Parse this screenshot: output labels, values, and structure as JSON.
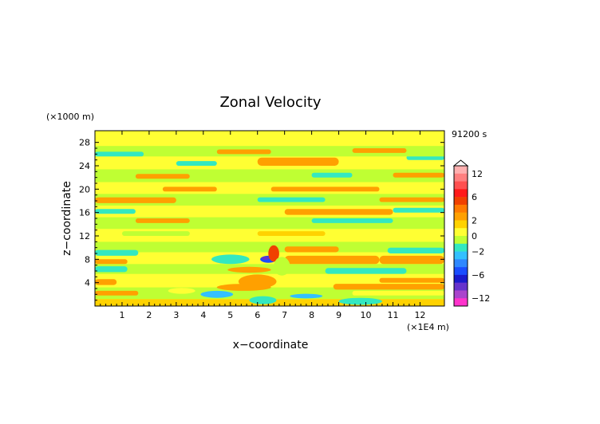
{
  "chart_data": {
    "type": "heatmap",
    "title": "Zonal Velocity",
    "xlabel": "x−coordinate",
    "ylabel": "z−coordinate",
    "x_unit": "(×1E4 m)",
    "y_unit": "(×1000 m)",
    "time_label": "91200 s",
    "xlim": [
      0,
      12.9
    ],
    "ylim": [
      0,
      30
    ],
    "x_ticks": [
      "1",
      "2",
      "3",
      "4",
      "5",
      "6",
      "7",
      "8",
      "9",
      "10",
      "11",
      "12"
    ],
    "y_ticks": [
      "4",
      "8",
      "12",
      "16",
      "20",
      "24",
      "28"
    ],
    "colorbar": {
      "labels": [
        "12",
        "6",
        "2",
        "0",
        "−2",
        "−6",
        "−12"
      ],
      "levels": [
        {
          "lo": 12,
          "hi": 14,
          "color": "#ffb0b0"
        },
        {
          "lo": 10,
          "hi": 12,
          "color": "#ff8080"
        },
        {
          "lo": 8,
          "hi": 10,
          "color": "#ff5050"
        },
        {
          "lo": 6,
          "hi": 8,
          "color": "#ff1a1a"
        },
        {
          "lo": 4,
          "hi": 6,
          "color": "#f04000"
        },
        {
          "lo": 3,
          "hi": 4,
          "color": "#ff7a00"
        },
        {
          "lo": 2,
          "hi": 3,
          "color": "#ffa000"
        },
        {
          "lo": 1,
          "hi": 2,
          "color": "#ffd200"
        },
        {
          "lo": 0,
          "hi": 1,
          "color": "#ffff33"
        },
        {
          "lo": -1,
          "hi": 0,
          "color": "#bfff33"
        },
        {
          "lo": -2,
          "hi": -1,
          "color": "#33e8c0"
        },
        {
          "lo": -3,
          "hi": -2,
          "color": "#33c0ff"
        },
        {
          "lo": -4,
          "hi": -3,
          "color": "#2f88ff"
        },
        {
          "lo": -6,
          "hi": -4,
          "color": "#1a4dff"
        },
        {
          "lo": -8,
          "hi": -6,
          "color": "#1a1acc"
        },
        {
          "lo": -10,
          "hi": -8,
          "color": "#6633cc"
        },
        {
          "lo": -12,
          "hi": -10,
          "color": "#aa44cc"
        },
        {
          "lo": -14,
          "hi": -12,
          "color": "#ff33cc"
        }
      ]
    },
    "bands": [
      {
        "x": [
          0,
          12.9
        ],
        "z": [
          0.0,
          1.2
        ],
        "v": 1.3
      },
      {
        "x": [
          0,
          12.9
        ],
        "z": [
          1.2,
          3.2
        ],
        "v": -0.5
      },
      {
        "x": [
          0.0,
          1.6
        ],
        "z": [
          1.8,
          2.6
        ],
        "v": 2.5
      },
      {
        "x": [
          9.5,
          12.9
        ],
        "z": [
          1.8,
          2.6
        ],
        "v": 0.5
      },
      {
        "x": [
          0,
          12.9
        ],
        "z": [
          3.2,
          5.5
        ],
        "v": 0.5
      },
      {
        "x": [
          0.0,
          0.8
        ],
        "z": [
          3.6,
          4.6
        ],
        "v": 2.4
      },
      {
        "x": [
          8.8,
          12.9
        ],
        "z": [
          2.8,
          3.8
        ],
        "v": 2.6
      },
      {
        "x": [
          10.5,
          12.9
        ],
        "z": [
          4.0,
          4.8
        ],
        "v": 2.2
      },
      {
        "x": [
          0,
          12.9
        ],
        "z": [
          5.5,
          7.2
        ],
        "v": -0.5
      },
      {
        "x": [
          0.0,
          1.2
        ],
        "z": [
          5.8,
          6.8
        ],
        "v": -1.8
      },
      {
        "x": [
          8.5,
          11.5
        ],
        "z": [
          5.5,
          6.5
        ],
        "v": -1.6
      },
      {
        "x": [
          0,
          12.9
        ],
        "z": [
          7.2,
          9.2
        ],
        "v": 0.6
      },
      {
        "x": [
          7.0,
          10.5
        ],
        "z": [
          7.2,
          8.6
        ],
        "v": 2.5
      },
      {
        "x": [
          10.5,
          12.9
        ],
        "z": [
          7.2,
          8.6
        ],
        "v": 2.3
      },
      {
        "x": [
          0,
          12.9
        ],
        "z": [
          9.2,
          11.0
        ],
        "v": -0.6
      },
      {
        "x": [
          0.0,
          1.6
        ],
        "z": [
          8.6,
          9.6
        ],
        "v": -1.8
      },
      {
        "x": [
          0.0,
          1.2
        ],
        "z": [
          7.2,
          8.0
        ],
        "v": 2.0
      },
      {
        "x": [
          10.8,
          12.9
        ],
        "z": [
          9.0,
          10.0
        ],
        "v": -1.8
      },
      {
        "x": [
          7.0,
          9.0
        ],
        "z": [
          9.2,
          10.2
        ],
        "v": 2.2
      },
      {
        "x": [
          0,
          12.9
        ],
        "z": [
          11.0,
          13.2
        ],
        "v": 0.5
      },
      {
        "x": [
          1.0,
          3.5
        ],
        "z": [
          12.0,
          12.8
        ],
        "v": -0.4
      },
      {
        "x": [
          6.0,
          8.5
        ],
        "z": [
          12.0,
          12.8
        ],
        "v": 1.6
      },
      {
        "x": [
          0,
          12.9
        ],
        "z": [
          13.2,
          15.2
        ],
        "v": -0.5
      },
      {
        "x": [
          1.5,
          3.5
        ],
        "z": [
          14.2,
          15.0
        ],
        "v": 2.3
      },
      {
        "x": [
          8.0,
          11.0
        ],
        "z": [
          14.2,
          15.0
        ],
        "v": -1.5
      },
      {
        "x": [
          0,
          12.9
        ],
        "z": [
          15.2,
          17.2
        ],
        "v": 0.5
      },
      {
        "x": [
          0.0,
          1.5
        ],
        "z": [
          15.8,
          16.6
        ],
        "v": -1.8
      },
      {
        "x": [
          7.0,
          11.0
        ],
        "z": [
          15.6,
          16.6
        ],
        "v": 2.6
      },
      {
        "x": [
          11.0,
          12.9
        ],
        "z": [
          16.0,
          16.8
        ],
        "v": -1.6
      },
      {
        "x": [
          0,
          12.9
        ],
        "z": [
          17.2,
          19.2
        ],
        "v": -0.5
      },
      {
        "x": [
          0.0,
          3.0
        ],
        "z": [
          17.6,
          18.6
        ],
        "v": 2.5
      },
      {
        "x": [
          6.0,
          8.5
        ],
        "z": [
          17.8,
          18.6
        ],
        "v": -1.7
      },
      {
        "x": [
          10.5,
          12.9
        ],
        "z": [
          17.8,
          18.6
        ],
        "v": 2.2
      },
      {
        "x": [
          0,
          12.9
        ],
        "z": [
          19.2,
          21.2
        ],
        "v": 0.5
      },
      {
        "x": [
          2.5,
          4.5
        ],
        "z": [
          19.6,
          20.4
        ],
        "v": 2.3
      },
      {
        "x": [
          6.5,
          10.5
        ],
        "z": [
          19.6,
          20.4
        ],
        "v": 2.2
      },
      {
        "x": [
          0,
          12.9
        ],
        "z": [
          21.2,
          23.4
        ],
        "v": -0.5
      },
      {
        "x": [
          1.5,
          3.5
        ],
        "z": [
          21.8,
          22.6
        ],
        "v": 2.4
      },
      {
        "x": [
          8.0,
          9.5
        ],
        "z": [
          22.0,
          22.8
        ],
        "v": -1.8
      },
      {
        "x": [
          11.0,
          12.9
        ],
        "z": [
          22.0,
          22.8
        ],
        "v": 2.2
      },
      {
        "x": [
          0,
          12.9
        ],
        "z": [
          23.4,
          25.6
        ],
        "v": 0.5
      },
      {
        "x": [
          3.0,
          4.5
        ],
        "z": [
          24.0,
          24.8
        ],
        "v": -1.7
      },
      {
        "x": [
          6.0,
          9.0
        ],
        "z": [
          24.0,
          25.4
        ],
        "v": 2.6
      },
      {
        "x": [
          11.5,
          12.9
        ],
        "z": [
          25.0,
          25.8
        ],
        "v": -1.6
      },
      {
        "x": [
          0,
          12.9
        ],
        "z": [
          25.6,
          27.4
        ],
        "v": -0.4
      },
      {
        "x": [
          0.0,
          1.8
        ],
        "z": [
          25.6,
          26.4
        ],
        "v": -1.6
      },
      {
        "x": [
          4.5,
          6.5
        ],
        "z": [
          26.0,
          26.8
        ],
        "v": 2.4
      },
      {
        "x": [
          9.5,
          11.5
        ],
        "z": [
          26.2,
          27.0
        ],
        "v": 2.2
      },
      {
        "x": [
          0,
          12.9
        ],
        "z": [
          27.4,
          30.0
        ],
        "v": 0.4
      }
    ],
    "patches": [
      {
        "cx": 6.4,
        "cz": 8.0,
        "rx": 0.3,
        "rz": 0.6,
        "v": -5.0
      },
      {
        "cx": 6.3,
        "cz": 8.2,
        "rx": 0.15,
        "rz": 0.3,
        "v": -9.0
      },
      {
        "cx": 6.6,
        "cz": 9.0,
        "rx": 0.2,
        "rz": 1.4,
        "v": 4.5
      },
      {
        "cx": 5.0,
        "cz": 8.0,
        "rx": 0.7,
        "rz": 0.8,
        "v": -2.0
      },
      {
        "cx": 6.0,
        "cz": 4.2,
        "rx": 0.7,
        "rz": 1.2,
        "v": 2.8
      },
      {
        "cx": 5.5,
        "cz": 3.2,
        "rx": 1.0,
        "rz": 0.6,
        "v": 2.2
      },
      {
        "cx": 4.5,
        "cz": 2.0,
        "rx": 0.6,
        "rz": 0.6,
        "v": -2.2
      },
      {
        "cx": 6.2,
        "cz": 1.0,
        "rx": 0.5,
        "rz": 0.7,
        "v": -2.0
      },
      {
        "cx": 7.8,
        "cz": 1.7,
        "rx": 0.6,
        "rz": 0.4,
        "v": -2.5
      },
      {
        "cx": 9.8,
        "cz": 0.8,
        "rx": 0.8,
        "rz": 0.6,
        "v": -1.7
      },
      {
        "cx": 3.2,
        "cz": 2.6,
        "rx": 0.5,
        "rz": 0.5,
        "v": 0.2
      },
      {
        "cx": 5.7,
        "cz": 6.2,
        "rx": 0.8,
        "rz": 0.5,
        "v": 2.3
      },
      {
        "cx": 6.9,
        "cz": 6.8,
        "rx": 0.3,
        "rz": 1.6,
        "v": -0.6
      }
    ]
  }
}
